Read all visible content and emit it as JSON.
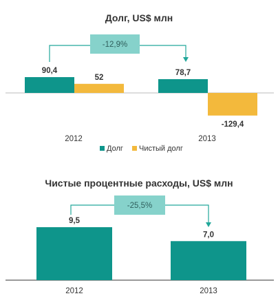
{
  "colors": {
    "teal": "#0e958b",
    "amber": "#f3b93c",
    "change_box": "#86d2cb",
    "arrow": "#21a79a",
    "axis": "#333333",
    "baseline": "#bbbbbb"
  },
  "chart_data": [
    {
      "type": "bar",
      "title": "Долг, US$ млн",
      "categories": [
        "2012",
        "2013"
      ],
      "series": [
        {
          "name": "Долг",
          "values": [
            90.4,
            78.7
          ],
          "labels": [
            "90,4",
            "78,7"
          ],
          "color": "#0e958b"
        },
        {
          "name": "Чистый долг",
          "values": [
            52,
            -129.4
          ],
          "labels": [
            "52",
            "-129,4"
          ],
          "color": "#f3b93c"
        }
      ],
      "annotation": {
        "text": "-12,9%",
        "from": "2012",
        "to": "2013"
      },
      "legend": [
        "Долг",
        "Чистый долг"
      ],
      "ylim": [
        -150,
        100
      ],
      "grid": false
    },
    {
      "type": "bar",
      "title": "Чистые процентные расходы, US$ млн",
      "categories": [
        "2012",
        "2013"
      ],
      "series": [
        {
          "values": [
            9.5,
            7.0
          ],
          "labels": [
            "9,5",
            "7,0"
          ],
          "color": "#0e958b"
        }
      ],
      "annotation": {
        "text": "-25,5%",
        "from": "2012",
        "to": "2013"
      },
      "ylim": [
        0,
        10
      ],
      "grid": false
    }
  ]
}
